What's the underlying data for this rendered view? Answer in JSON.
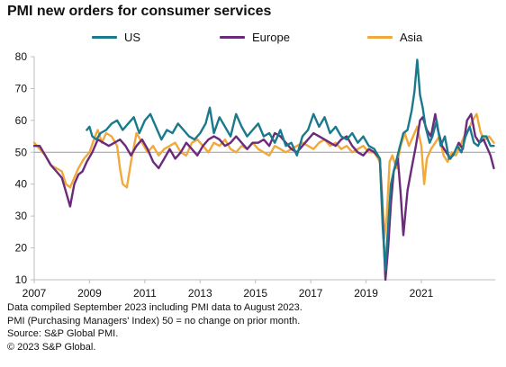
{
  "title": "PMI new orders for consumer services",
  "notes": [
    "Data compiled September 2023 including PMI data to August 2023.",
    "PMI (Purchasing Managers' Index) 50 = no change on prior month.",
    "Source: S&P Global PMI.",
    "© 2023 S&P Global."
  ],
  "chart_data": {
    "type": "line",
    "title": "PMI new orders for consumer services",
    "xlabel": "",
    "ylabel": "",
    "xlim": [
      2007.0,
      2023.67
    ],
    "ylim": [
      10,
      80
    ],
    "yticks": [
      10,
      20,
      30,
      40,
      50,
      60,
      70,
      80
    ],
    "xticks": [
      2007,
      2009,
      2011,
      2013,
      2015,
      2017,
      2019,
      2021
    ],
    "xtick_labels": [
      "2007",
      "2009",
      "2011",
      "2013",
      "2015",
      "2017",
      "2019",
      "2021"
    ],
    "reference_line": 50,
    "legend_position": "top",
    "grid": false,
    "series": [
      {
        "name": "US",
        "color": "#1a7a8c",
        "points": [
          [
            2008.9,
            57
          ],
          [
            2009.0,
            58
          ],
          [
            2009.1,
            55
          ],
          [
            2009.25,
            54
          ],
          [
            2009.4,
            56
          ],
          [
            2009.6,
            57
          ],
          [
            2009.8,
            59
          ],
          [
            2010.0,
            60
          ],
          [
            2010.2,
            57
          ],
          [
            2010.4,
            59
          ],
          [
            2010.6,
            61
          ],
          [
            2010.8,
            56
          ],
          [
            2011.0,
            60
          ],
          [
            2011.2,
            62
          ],
          [
            2011.4,
            58
          ],
          [
            2011.6,
            54
          ],
          [
            2011.8,
            57
          ],
          [
            2012.0,
            56
          ],
          [
            2012.2,
            59
          ],
          [
            2012.4,
            57
          ],
          [
            2012.6,
            55
          ],
          [
            2012.8,
            54
          ],
          [
            2013.0,
            56
          ],
          [
            2013.2,
            59
          ],
          [
            2013.35,
            64
          ],
          [
            2013.5,
            56
          ],
          [
            2013.7,
            61
          ],
          [
            2013.9,
            58
          ],
          [
            2014.1,
            55
          ],
          [
            2014.3,
            62
          ],
          [
            2014.5,
            58
          ],
          [
            2014.7,
            55
          ],
          [
            2014.9,
            57
          ],
          [
            2015.1,
            59
          ],
          [
            2015.3,
            55
          ],
          [
            2015.5,
            56
          ],
          [
            2015.7,
            53
          ],
          [
            2015.9,
            57
          ],
          [
            2016.1,
            52
          ],
          [
            2016.3,
            53
          ],
          [
            2016.5,
            49
          ],
          [
            2016.7,
            55
          ],
          [
            2016.9,
            57
          ],
          [
            2017.1,
            62
          ],
          [
            2017.3,
            58
          ],
          [
            2017.5,
            61
          ],
          [
            2017.7,
            56
          ],
          [
            2017.9,
            58
          ],
          [
            2018.1,
            55
          ],
          [
            2018.3,
            54
          ],
          [
            2018.5,
            56
          ],
          [
            2018.7,
            53
          ],
          [
            2018.9,
            55
          ],
          [
            2019.1,
            52
          ],
          [
            2019.3,
            51
          ],
          [
            2019.5,
            48
          ],
          [
            2019.6,
            27
          ],
          [
            2019.7,
            13
          ],
          [
            2019.8,
            27
          ],
          [
            2019.9,
            40
          ],
          [
            2020.0,
            44
          ],
          [
            2020.2,
            51
          ],
          [
            2020.35,
            56
          ],
          [
            2020.5,
            57
          ],
          [
            2020.65,
            63
          ],
          [
            2020.75,
            69
          ],
          [
            2020.85,
            79
          ],
          [
            2020.95,
            68
          ],
          [
            2021.05,
            64
          ],
          [
            2021.15,
            58
          ],
          [
            2021.3,
            53
          ],
          [
            2021.4,
            55
          ],
          [
            2021.55,
            60
          ],
          [
            2021.7,
            52
          ],
          [
            2021.85,
            55
          ],
          [
            2022.0,
            48
          ],
          [
            2022.15,
            49
          ],
          [
            2022.3,
            52
          ],
          [
            2022.45,
            50
          ],
          [
            2022.6,
            55
          ],
          [
            2022.75,
            58
          ],
          [
            2022.9,
            53
          ],
          [
            2023.05,
            52
          ],
          [
            2023.2,
            55
          ],
          [
            2023.35,
            55
          ],
          [
            2023.5,
            52
          ],
          [
            2023.62,
            52
          ]
        ]
      },
      {
        "name": "Europe",
        "color": "#6b2a7a",
        "points": [
          [
            2007.0,
            52
          ],
          [
            2007.2,
            52
          ],
          [
            2007.4,
            49
          ],
          [
            2007.6,
            46
          ],
          [
            2007.8,
            44
          ],
          [
            2008.0,
            42
          ],
          [
            2008.2,
            36
          ],
          [
            2008.3,
            33
          ],
          [
            2008.45,
            40
          ],
          [
            2008.6,
            43
          ],
          [
            2008.75,
            44
          ],
          [
            2008.9,
            47
          ],
          [
            2009.1,
            50
          ],
          [
            2009.3,
            54
          ],
          [
            2009.5,
            53
          ],
          [
            2009.7,
            52
          ],
          [
            2009.9,
            53
          ],
          [
            2010.1,
            54
          ],
          [
            2010.3,
            52
          ],
          [
            2010.5,
            49
          ],
          [
            2010.7,
            52
          ],
          [
            2010.9,
            54
          ],
          [
            2011.1,
            51
          ],
          [
            2011.3,
            47
          ],
          [
            2011.5,
            45
          ],
          [
            2011.7,
            48
          ],
          [
            2011.9,
            51
          ],
          [
            2012.1,
            48
          ],
          [
            2012.3,
            50
          ],
          [
            2012.5,
            53
          ],
          [
            2012.7,
            51
          ],
          [
            2012.9,
            49
          ],
          [
            2013.1,
            52
          ],
          [
            2013.3,
            54
          ],
          [
            2013.5,
            55
          ],
          [
            2013.7,
            54
          ],
          [
            2013.9,
            52
          ],
          [
            2014.1,
            53
          ],
          [
            2014.3,
            55
          ],
          [
            2014.5,
            53
          ],
          [
            2014.7,
            51
          ],
          [
            2014.9,
            53
          ],
          [
            2015.1,
            53
          ],
          [
            2015.3,
            54
          ],
          [
            2015.5,
            52
          ],
          [
            2015.7,
            56
          ],
          [
            2015.9,
            55
          ],
          [
            2016.1,
            53
          ],
          [
            2016.3,
            51
          ],
          [
            2016.5,
            50
          ],
          [
            2016.7,
            52
          ],
          [
            2016.9,
            54
          ],
          [
            2017.1,
            56
          ],
          [
            2017.3,
            55
          ],
          [
            2017.5,
            54
          ],
          [
            2017.7,
            53
          ],
          [
            2017.9,
            52
          ],
          [
            2018.1,
            54
          ],
          [
            2018.3,
            55
          ],
          [
            2018.5,
            52
          ],
          [
            2018.7,
            50
          ],
          [
            2018.9,
            49
          ],
          [
            2019.1,
            51
          ],
          [
            2019.3,
            50
          ],
          [
            2019.5,
            48
          ],
          [
            2019.6,
            30
          ],
          [
            2019.7,
            10
          ],
          [
            2019.8,
            20
          ],
          [
            2019.9,
            34
          ],
          [
            2020.0,
            44
          ],
          [
            2020.15,
            48
          ],
          [
            2020.25,
            37
          ],
          [
            2020.35,
            24
          ],
          [
            2020.5,
            38
          ],
          [
            2020.65,
            45
          ],
          [
            2020.8,
            52
          ],
          [
            2020.95,
            60
          ],
          [
            2021.05,
            61
          ],
          [
            2021.2,
            57
          ],
          [
            2021.35,
            55
          ],
          [
            2021.5,
            62
          ],
          [
            2021.6,
            57
          ],
          [
            2021.75,
            52
          ],
          [
            2021.9,
            50
          ],
          [
            2022.05,
            48
          ],
          [
            2022.2,
            50
          ],
          [
            2022.35,
            53
          ],
          [
            2022.5,
            51
          ],
          [
            2022.65,
            60
          ],
          [
            2022.8,
            62
          ],
          [
            2022.95,
            55
          ],
          [
            2023.1,
            53
          ],
          [
            2023.25,
            54
          ],
          [
            2023.4,
            51
          ],
          [
            2023.5,
            49
          ],
          [
            2023.62,
            45
          ]
        ]
      },
      {
        "name": "Asia",
        "color": "#f2a93b",
        "points": [
          [
            2007.0,
            53
          ],
          [
            2007.2,
            51
          ],
          [
            2007.4,
            49
          ],
          [
            2007.6,
            46
          ],
          [
            2007.8,
            45
          ],
          [
            2008.0,
            44
          ],
          [
            2008.15,
            40
          ],
          [
            2008.3,
            39
          ],
          [
            2008.45,
            42
          ],
          [
            2008.6,
            45
          ],
          [
            2008.8,
            48
          ],
          [
            2009.0,
            50
          ],
          [
            2009.2,
            55
          ],
          [
            2009.3,
            57
          ],
          [
            2009.45,
            53
          ],
          [
            2009.6,
            56
          ],
          [
            2009.8,
            55
          ],
          [
            2010.0,
            52
          ],
          [
            2010.1,
            45
          ],
          [
            2010.2,
            40
          ],
          [
            2010.35,
            39
          ],
          [
            2010.5,
            47
          ],
          [
            2010.7,
            56
          ],
          [
            2010.9,
            53
          ],
          [
            2011.1,
            50
          ],
          [
            2011.3,
            52
          ],
          [
            2011.5,
            49
          ],
          [
            2011.7,
            51
          ],
          [
            2011.9,
            52
          ],
          [
            2012.1,
            53
          ],
          [
            2012.3,
            50
          ],
          [
            2012.5,
            49
          ],
          [
            2012.7,
            53
          ],
          [
            2012.9,
            54
          ],
          [
            2013.1,
            52
          ],
          [
            2013.3,
            50
          ],
          [
            2013.5,
            53
          ],
          [
            2013.7,
            52
          ],
          [
            2013.9,
            54
          ],
          [
            2014.1,
            51
          ],
          [
            2014.3,
            50
          ],
          [
            2014.5,
            52
          ],
          [
            2014.7,
            51
          ],
          [
            2014.9,
            53
          ],
          [
            2015.1,
            51
          ],
          [
            2015.3,
            50
          ],
          [
            2015.5,
            49
          ],
          [
            2015.7,
            52
          ],
          [
            2015.9,
            51
          ],
          [
            2016.1,
            50
          ],
          [
            2016.3,
            51
          ],
          [
            2016.5,
            52
          ],
          [
            2016.7,
            53
          ],
          [
            2016.9,
            52
          ],
          [
            2017.1,
            51
          ],
          [
            2017.3,
            53
          ],
          [
            2017.5,
            54
          ],
          [
            2017.7,
            52
          ],
          [
            2017.9,
            53
          ],
          [
            2018.1,
            51
          ],
          [
            2018.3,
            52
          ],
          [
            2018.5,
            50
          ],
          [
            2018.7,
            51
          ],
          [
            2018.9,
            52
          ],
          [
            2019.1,
            50
          ],
          [
            2019.3,
            50
          ],
          [
            2019.5,
            47
          ],
          [
            2019.58,
            37
          ],
          [
            2019.66,
            23
          ],
          [
            2019.75,
            30
          ],
          [
            2019.85,
            47
          ],
          [
            2019.95,
            49
          ],
          [
            2020.1,
            45
          ],
          [
            2020.25,
            52
          ],
          [
            2020.4,
            56
          ],
          [
            2020.55,
            52
          ],
          [
            2020.7,
            55
          ],
          [
            2020.85,
            58
          ],
          [
            2021.0,
            52
          ],
          [
            2021.1,
            40
          ],
          [
            2021.2,
            48
          ],
          [
            2021.35,
            51
          ],
          [
            2021.5,
            53
          ],
          [
            2021.65,
            55
          ],
          [
            2021.8,
            49
          ],
          [
            2021.95,
            47
          ],
          [
            2022.1,
            50
          ],
          [
            2022.25,
            49
          ],
          [
            2022.4,
            52
          ],
          [
            2022.55,
            55
          ],
          [
            2022.7,
            57
          ],
          [
            2022.85,
            60
          ],
          [
            2023.0,
            62
          ],
          [
            2023.15,
            56
          ],
          [
            2023.3,
            54
          ],
          [
            2023.45,
            55
          ],
          [
            2023.62,
            53
          ]
        ]
      }
    ]
  }
}
